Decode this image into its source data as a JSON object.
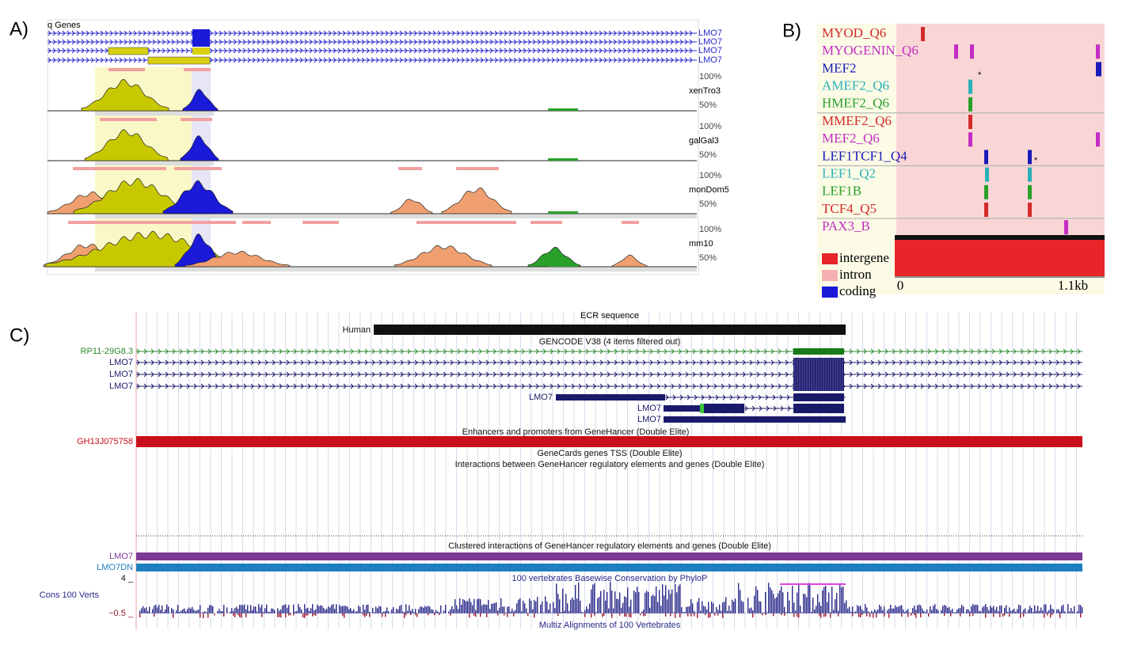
{
  "panel_a": {
    "label": "A)",
    "gene_track": "q Genes",
    "genes": [
      "LMO7",
      "LMO7",
      "LMO7",
      "LMO7"
    ],
    "species": [
      {
        "name": "xenTro3",
        "top": "100%",
        "bottom": "50%"
      },
      {
        "name": "galGal3",
        "top": "100%",
        "bottom": "50%"
      },
      {
        "name": "monDom5",
        "top": "100%",
        "bottom": "50%"
      },
      {
        "name": "mm10",
        "top": "100%",
        "bottom": "50%"
      }
    ]
  },
  "panel_b": {
    "label": "B)",
    "motifs": [
      {
        "name": "MYOD_Q6",
        "color": "#d42a2a"
      },
      {
        "name": "MYOGENIN_Q6",
        "color": "#c42cc4"
      },
      {
        "name": "MEF2",
        "color": "#1a1ab8"
      },
      {
        "name": "AMEF2_Q6",
        "color": "#2ab0b8"
      },
      {
        "name": "HMEF2_Q6",
        "color": "#2aa02a"
      },
      {
        "name": "MMEF2_Q6",
        "color": "#d42a2a"
      },
      {
        "name": "MEF2_Q6",
        "color": "#c42cc4"
      },
      {
        "name": "LEF1TCF1_Q4",
        "color": "#1a1ab8"
      },
      {
        "name": "LEF1_Q2",
        "color": "#2ab0b8"
      },
      {
        "name": "LEF1B",
        "color": "#2aa02a"
      },
      {
        "name": "TCF4_Q5",
        "color": "#d42a2a"
      },
      {
        "name": "PAX3_B",
        "color": "#c42cc4"
      }
    ],
    "marks": [
      "*",
      "*"
    ],
    "legend": [
      "intergene",
      "intron",
      "coding"
    ],
    "axis": [
      "0",
      "1.1kb"
    ]
  },
  "panel_c": {
    "label": "C)",
    "title": "ECR sequence",
    "human": "Human",
    "gencode_title": "GENCODE V38 (4 items filtered out)",
    "transcripts": [
      "RP11-29G8.3",
      "LMO7",
      "LMO7",
      "LMO7",
      "LMO7",
      "LMO7",
      "LMO7"
    ],
    "genehancer_title": "Enhancers and promoters from GeneHancer (Double Elite)",
    "genehancer_id": "GH13J075758",
    "tss_title": "GeneCards genes TSS (Double Elite)",
    "interactions_title": "Interactions between GeneHancer regulatory elements and genes (Double Elite)",
    "clustered_title": "Clustered interactions of GeneHancer regulatory elements and genes (Double Elite)",
    "clustered": [
      "LMO7",
      "LMO7DN"
    ],
    "phylop_title": "100 vertebrates Basewise Conservation by PhyloP",
    "phylop_max": "4 _",
    "phylop_label": "Cons 100 Verts",
    "phylop_min": "−0.5 _",
    "multiz_title": "Multiz Alignments of 100 Vertebrates"
  }
}
